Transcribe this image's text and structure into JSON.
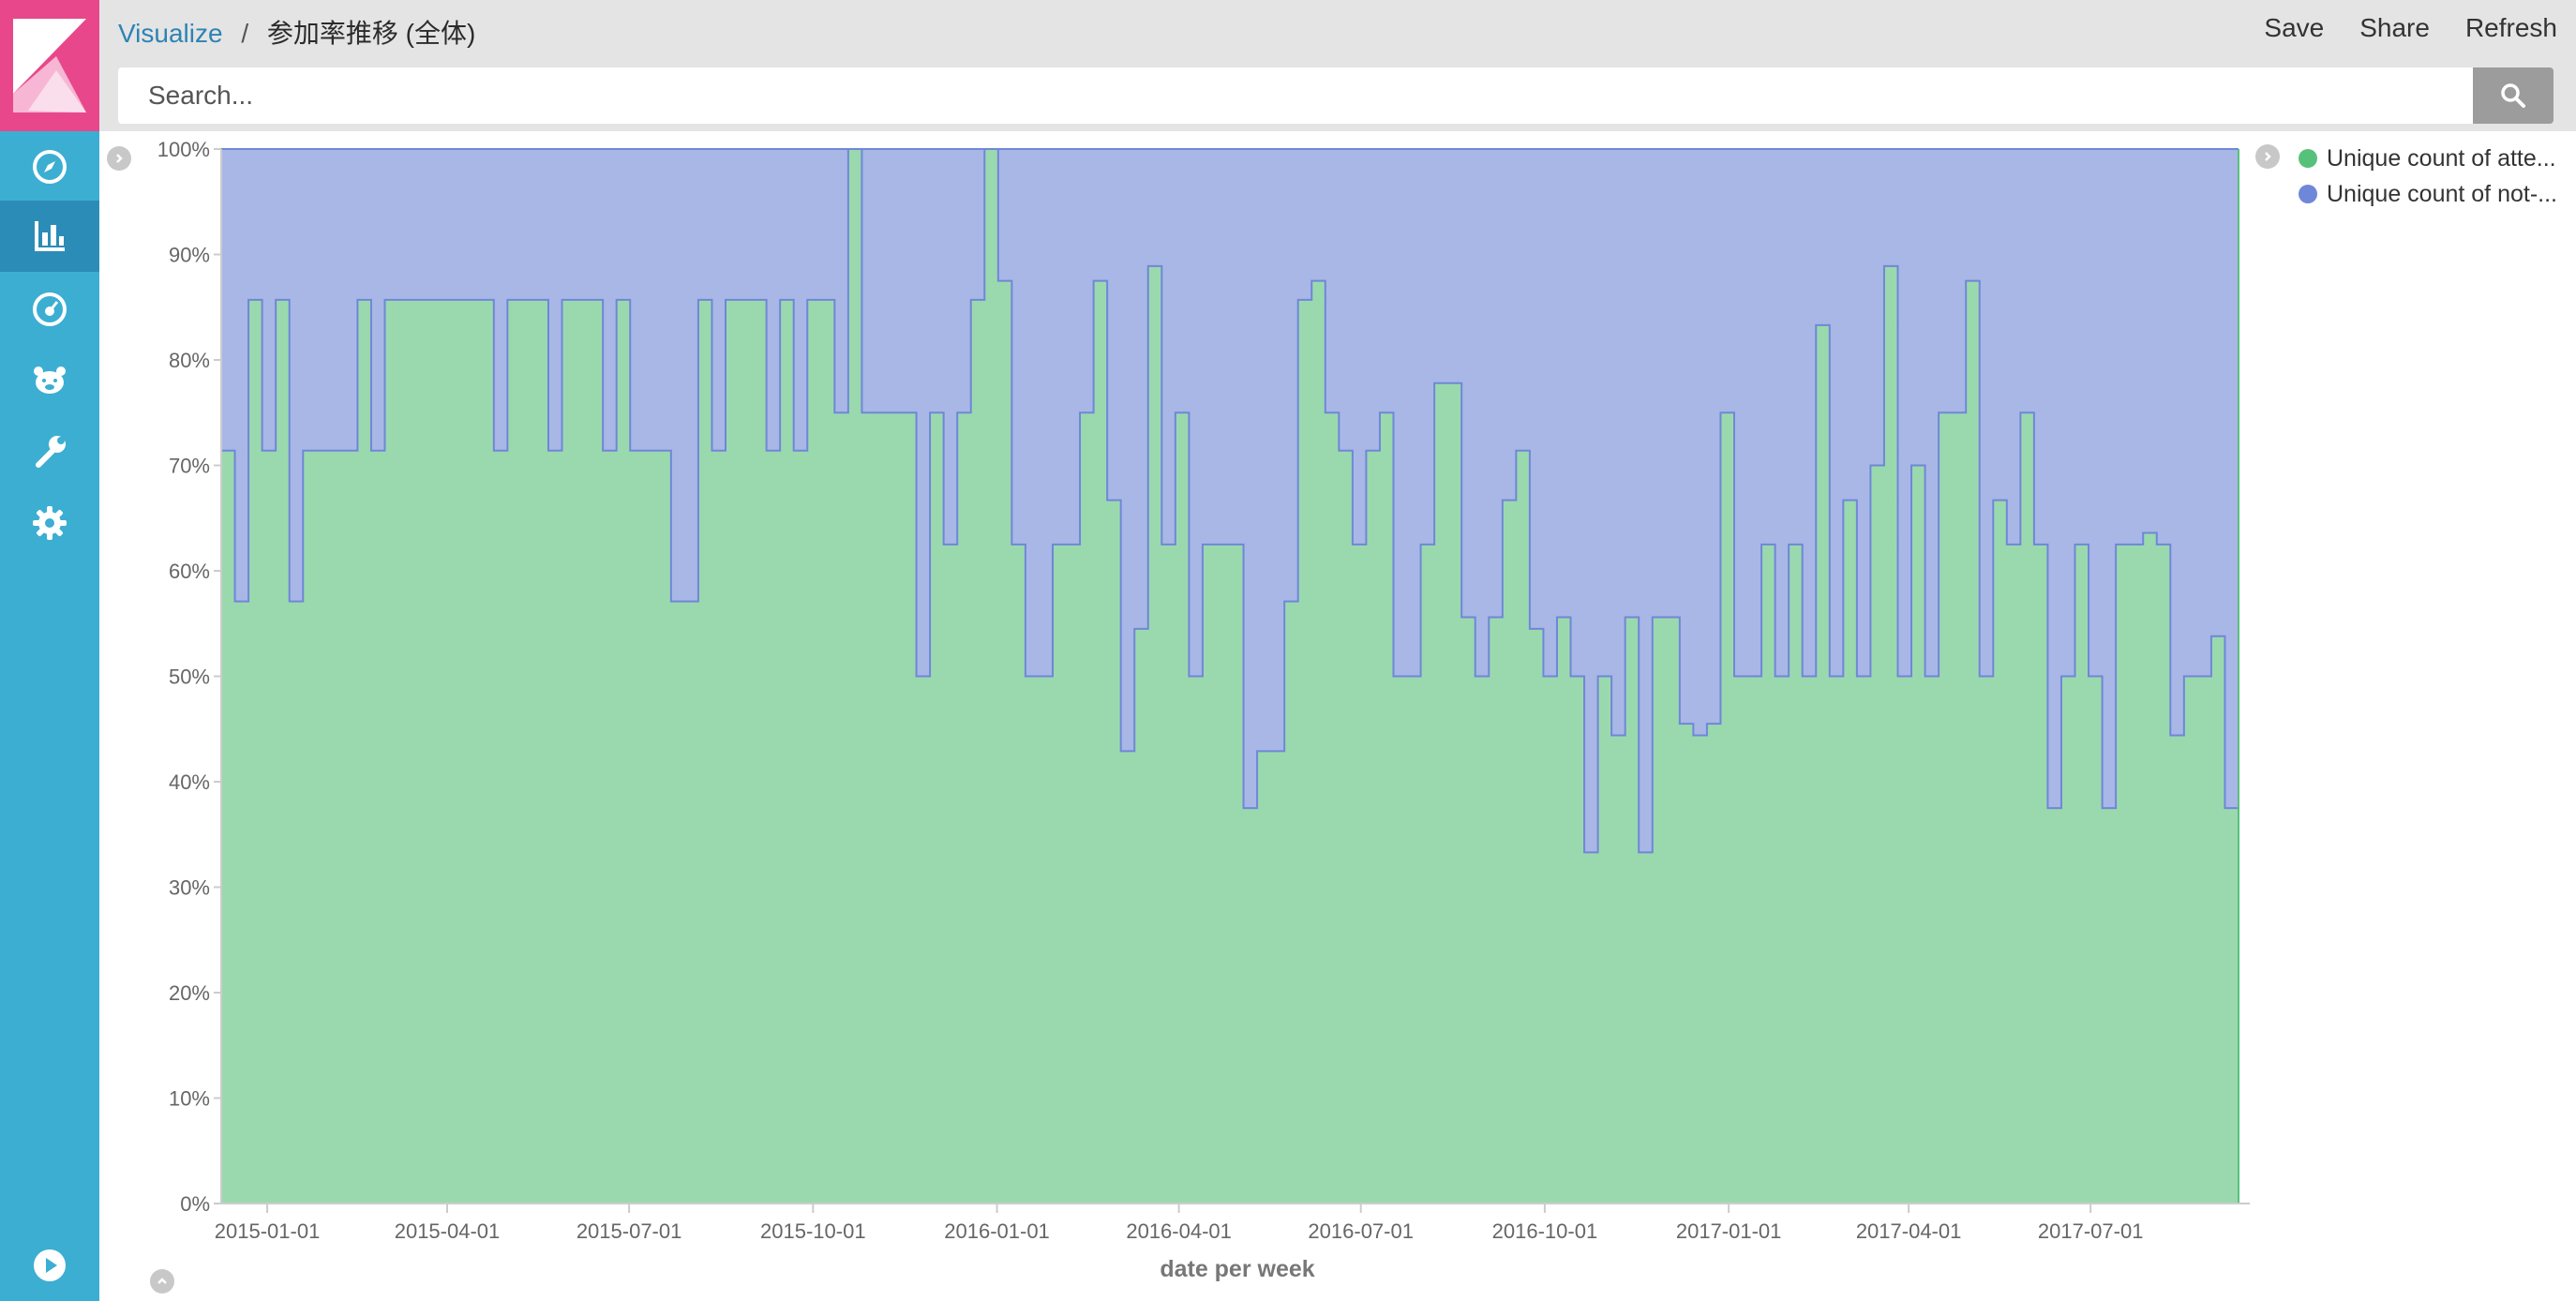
{
  "breadcrumb": {
    "app": "Visualize",
    "separator": "/",
    "title": "参加率推移 (全体)"
  },
  "actions": {
    "save": "Save",
    "share": "Share",
    "refresh": "Refresh"
  },
  "search": {
    "placeholder": "Search...",
    "button_icon": "search-icon"
  },
  "nav": {
    "logo_icon": "kibana-logo-icon",
    "items": [
      {
        "icon": "discover-compass-icon",
        "active": false
      },
      {
        "icon": "visualize-bar-chart-icon",
        "active": true
      },
      {
        "icon": "dashboard-gauge-icon",
        "active": false
      },
      {
        "icon": "timelion-bear-icon",
        "active": false
      },
      {
        "icon": "dev-tools-wrench-icon",
        "active": false
      },
      {
        "icon": "management-gear-icon",
        "active": false
      }
    ],
    "collapse_icon": "play-circle-icon"
  },
  "colors": {
    "sidebar": "#3caed2",
    "logo": "#e8488b",
    "attended": "#9ad9ae",
    "not_attended": "#a9b7e6",
    "line": "#6f87d8"
  },
  "legend": {
    "items": [
      {
        "label": "Unique count of atte...",
        "color": "#57c17b"
      },
      {
        "label": "Unique count of not-...",
        "color": "#6f87d8"
      }
    ]
  },
  "chart_data": {
    "type": "area",
    "stacking": "percent",
    "xlabel": "date per week",
    "ylabel": "",
    "ylim": [
      0,
      100
    ],
    "y_ticks": [
      "0%",
      "10%",
      "20%",
      "30%",
      "40%",
      "50%",
      "60%",
      "70%",
      "80%",
      "90%",
      "100%"
    ],
    "x_ticks": [
      "2015-01-01",
      "2015-04-01",
      "2015-07-01",
      "2015-10-01",
      "2016-01-01",
      "2016-04-01",
      "2016-07-01",
      "2016-10-01",
      "2017-01-01",
      "2017-04-01",
      "2017-07-01"
    ],
    "x_start": "2014-12-09",
    "x_end": "2017-09-13",
    "legend_position": "top-right",
    "series": [
      {
        "name": "Unique count of atte...",
        "color": "#9ad9ae",
        "values": [
          71.4,
          57.1,
          85.7,
          71.4,
          85.7,
          57.1,
          71.4,
          71.4,
          71.4,
          71.4,
          85.7,
          71.4,
          85.7,
          85.7,
          85.7,
          85.7,
          85.7,
          85.7,
          85.7,
          85.7,
          71.4,
          85.7,
          85.7,
          85.7,
          71.4,
          85.7,
          85.7,
          85.7,
          71.4,
          85.7,
          71.4,
          71.4,
          71.4,
          57.1,
          57.1,
          85.7,
          71.4,
          85.7,
          85.7,
          85.7,
          71.4,
          85.7,
          71.4,
          85.7,
          85.7,
          75,
          100,
          75,
          75,
          75,
          75,
          50,
          75,
          62.5,
          75,
          85.7,
          100,
          87.5,
          62.5,
          50,
          50,
          62.5,
          62.5,
          75,
          87.5,
          66.7,
          42.9,
          54.5,
          88.9,
          62.5,
          75,
          50,
          62.5,
          62.5,
          62.5,
          37.5,
          42.9,
          42.9,
          57.1,
          85.7,
          87.5,
          75,
          71.4,
          62.5,
          71.4,
          75,
          50,
          50,
          62.5,
          77.8,
          77.8,
          55.6,
          50,
          55.6,
          66.7,
          71.4,
          54.5,
          50,
          55.6,
          50,
          33.3,
          50,
          44.4,
          55.6,
          33.3,
          55.6,
          55.6,
          45.5,
          44.4,
          45.5,
          75,
          50,
          50,
          62.5,
          50,
          62.5,
          50,
          83.3,
          50,
          66.7,
          50,
          70,
          88.9,
          50,
          70,
          50,
          75,
          75,
          87.5,
          50,
          66.7,
          62.5,
          75,
          62.5,
          37.5,
          50,
          62.5,
          50,
          37.5,
          62.5,
          62.5,
          63.6,
          62.5,
          44.4,
          50,
          50,
          53.8,
          37.5
        ]
      },
      {
        "name": "Unique count of not-...",
        "color": "#a9b7e6",
        "values": [
          28.6,
          42.9,
          14.3,
          28.6,
          14.3,
          42.9,
          28.6,
          28.6,
          28.6,
          28.6,
          14.3,
          28.6,
          14.3,
          14.3,
          14.3,
          14.3,
          14.3,
          14.3,
          14.3,
          14.3,
          28.6,
          14.3,
          14.3,
          14.3,
          28.6,
          14.3,
          14.3,
          14.3,
          28.6,
          14.3,
          28.6,
          28.6,
          28.6,
          42.9,
          42.9,
          14.3,
          28.6,
          14.3,
          14.3,
          14.3,
          28.6,
          14.3,
          28.6,
          14.3,
          14.3,
          25,
          0,
          25,
          25,
          25,
          25,
          50,
          25,
          37.5,
          25,
          14.3,
          0,
          12.5,
          37.5,
          50,
          50,
          37.5,
          37.5,
          25,
          12.5,
          33.3,
          57.1,
          45.5,
          11.1,
          37.5,
          25,
          50,
          37.5,
          37.5,
          37.5,
          62.5,
          57.1,
          57.1,
          42.9,
          14.3,
          12.5,
          25,
          28.6,
          37.5,
          28.6,
          25,
          50,
          50,
          37.5,
          22.2,
          22.2,
          44.4,
          50,
          44.4,
          33.3,
          28.6,
          45.5,
          50,
          44.4,
          50,
          66.7,
          50,
          55.6,
          44.4,
          66.7,
          44.4,
          44.4,
          54.5,
          55.6,
          54.5,
          25,
          50,
          50,
          37.5,
          50,
          37.5,
          50,
          16.7,
          50,
          33.3,
          50,
          30,
          11.1,
          50,
          30,
          50,
          25,
          25,
          12.5,
          50,
          33.3,
          37.5,
          25,
          37.5,
          62.5,
          50,
          37.5,
          50,
          62.5,
          37.5,
          37.5,
          36.4,
          37.5,
          55.6,
          50,
          50,
          46.2,
          62.5
        ]
      }
    ]
  }
}
